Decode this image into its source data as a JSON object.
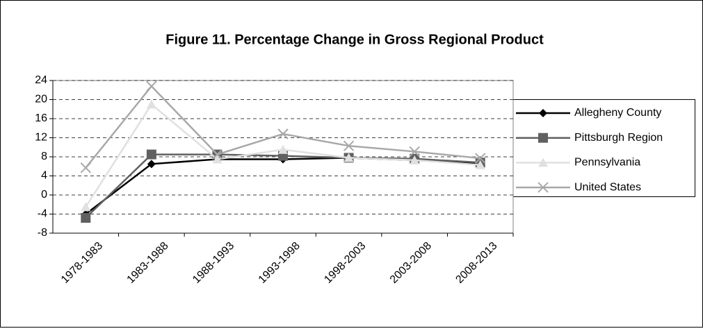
{
  "chart_data": {
    "type": "line",
    "title": "Figure 11. Percentage Change in Gross Regional Product",
    "categories": [
      "1978-1983",
      "1983-1988",
      "1988-1993",
      "1993-1998",
      "1998-2003",
      "2003-2008",
      "2008-2013"
    ],
    "series": [
      {
        "name": "Allegheny County",
        "color": "#000000",
        "marker": "diamond",
        "values": [
          -4,
          6.5,
          7.5,
          7.5,
          7.8,
          7.3,
          6.5
        ]
      },
      {
        "name": "Pittsburgh Region",
        "color": "#606060",
        "marker": "square",
        "values": [
          -4.8,
          8.5,
          8.5,
          8.2,
          7.8,
          7.6,
          6.8
        ]
      },
      {
        "name": "Pennsylvania",
        "color": "#e0e0e0",
        "marker": "triangle",
        "values": [
          -2.5,
          19,
          7.5,
          9.5,
          7.8,
          7.3,
          6.3
        ]
      },
      {
        "name": "United States",
        "color": "#a8a8a8",
        "marker": "x",
        "values": [
          5.7,
          22.8,
          8.5,
          12.8,
          10.3,
          9.1,
          7.7
        ]
      }
    ],
    "ylim": [
      -8,
      24
    ],
    "yticks": [
      -8,
      -4,
      0,
      4,
      8,
      12,
      16,
      20,
      24
    ],
    "grid": true,
    "legend": "right"
  }
}
